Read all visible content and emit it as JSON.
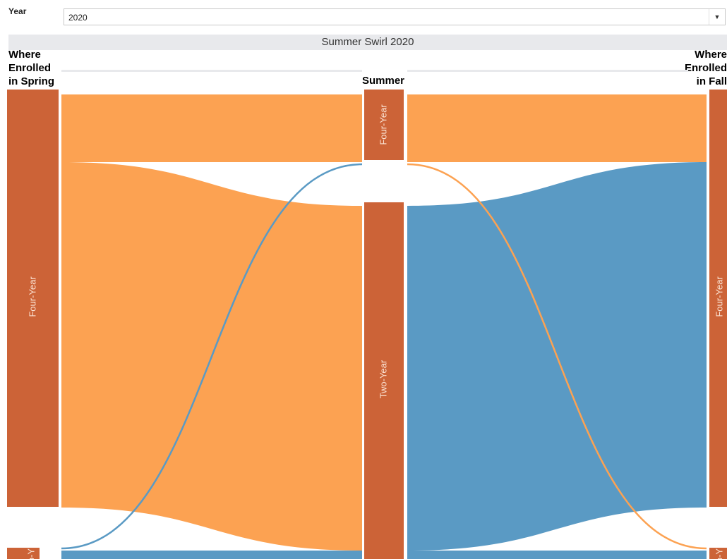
{
  "filter": {
    "label": "Year",
    "selected": "2020"
  },
  "title": "Summer Swirl 2020",
  "columns": {
    "spring": "Where\nEnrolled\nin Spring",
    "summer": "Summer",
    "fall": "Where\nEnrolled\nin Fall"
  },
  "colors": {
    "node": "#cc6337",
    "flow_orange": "#fca252",
    "flow_blue": "#5a9ac4"
  },
  "chart_data": {
    "type": "sankey",
    "stages": [
      "Where Enrolled in Spring",
      "Summer",
      "Where Enrolled in Fall"
    ],
    "nodes": [
      {
        "stage": "spring",
        "name": "Four-Year"
      },
      {
        "stage": "spring",
        "name": "Two-Year",
        "label_shown": "o-Y"
      },
      {
        "stage": "summer",
        "name": "Four-Year"
      },
      {
        "stage": "summer",
        "name": "Two-Year"
      },
      {
        "stage": "fall",
        "name": "Four-Year"
      },
      {
        "stage": "fall",
        "name": "Two-Year",
        "label_shown": "o-Y"
      }
    ]
  }
}
